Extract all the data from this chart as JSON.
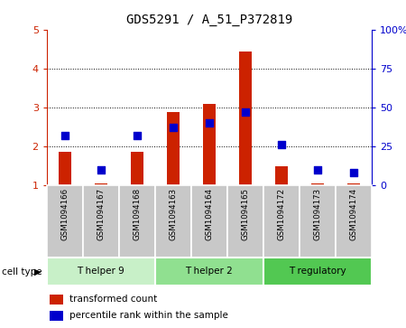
{
  "title": "GDS5291 / A_51_P372819",
  "samples": [
    "GSM1094166",
    "GSM1094167",
    "GSM1094168",
    "GSM1094163",
    "GSM1094164",
    "GSM1094165",
    "GSM1094172",
    "GSM1094173",
    "GSM1094174"
  ],
  "transformed_counts": [
    1.87,
    1.05,
    1.87,
    2.88,
    3.08,
    4.43,
    1.5,
    1.05,
    1.05
  ],
  "percentile_ranks_pct": [
    32,
    10,
    32,
    37,
    40,
    47,
    26,
    10,
    8
  ],
  "ylim_left": [
    1,
    5
  ],
  "ylim_right": [
    0,
    100
  ],
  "yticks_left": [
    1,
    2,
    3,
    4,
    5
  ],
  "ytick_labels_left": [
    "1",
    "2",
    "3",
    "4",
    "5"
  ],
  "yticks_right": [
    0,
    25,
    50,
    75,
    100
  ],
  "ytick_labels_right": [
    "0",
    "25",
    "50",
    "75",
    "100%"
  ],
  "cell_groups": [
    {
      "label": "T helper 9",
      "count": 3,
      "color": "#c8f0c8"
    },
    {
      "label": "T helper 2",
      "count": 3,
      "color": "#90e090"
    },
    {
      "label": "T regulatory",
      "count": 3,
      "color": "#52c852"
    }
  ],
  "bar_color": "#cc2200",
  "dot_color": "#0000cc",
  "grid_color": "#000000",
  "label_bg_color": "#c8c8c8",
  "bar_width": 0.35,
  "dot_size": 28,
  "left_tick_color": "#cc2200",
  "right_tick_color": "#0000cc",
  "legend_items": [
    {
      "label": "transformed count",
      "color": "#cc2200"
    },
    {
      "label": "percentile rank within the sample",
      "color": "#0000cc"
    }
  ],
  "cell_type_label": "cell type"
}
